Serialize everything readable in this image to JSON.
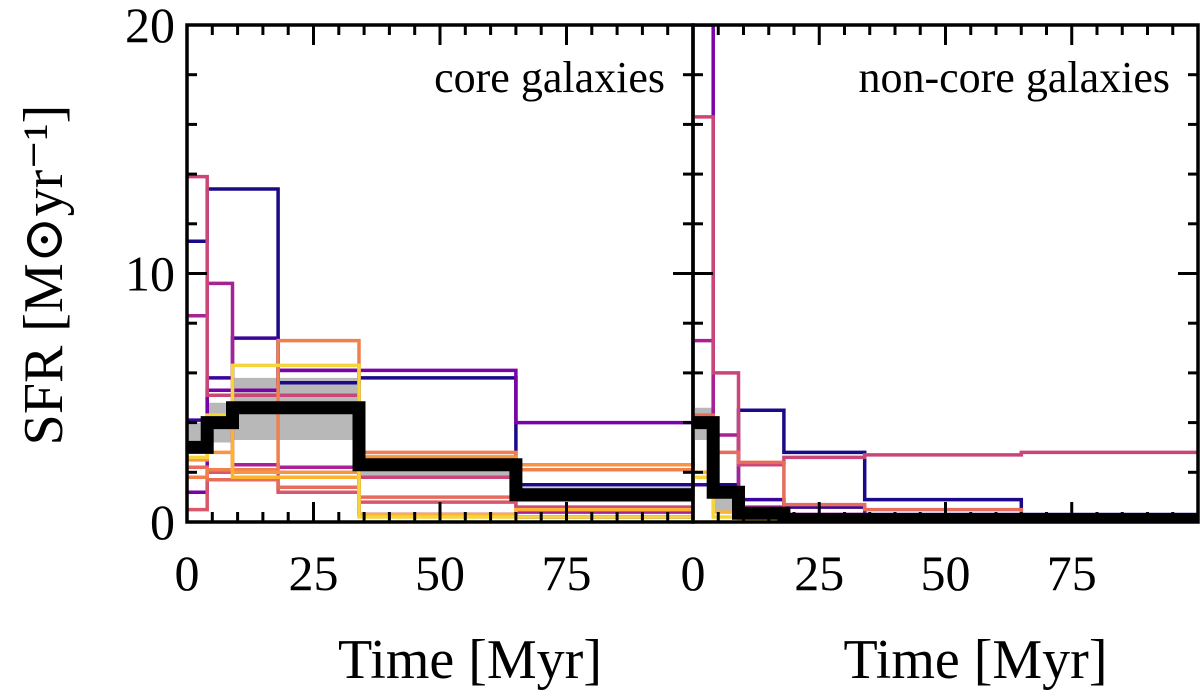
{
  "chart_data": {
    "type": "line",
    "ylabel": "SFR [M⊙yr⁻¹]",
    "ylim": [
      0,
      20
    ],
    "yticks": [
      "0",
      "10",
      "20"
    ],
    "xlim": [
      0,
      100
    ],
    "grid": false,
    "panels": [
      {
        "title": "core galaxies",
        "xlabel": "Time [Myr]",
        "xticks": [
          "0",
          "25",
          "50",
          "75"
        ],
        "band": {
          "color": "#b8b8b8",
          "edges": [
            0,
            4,
            9,
            34,
            65,
            100
          ],
          "lower": [
            2.8,
            3.2,
            3.3,
            1.8,
            0.8
          ],
          "upper": [
            4.0,
            4.8,
            5.8,
            2.7,
            1.4
          ]
        },
        "median": {
          "color": "#000000",
          "edges": [
            0,
            4,
            9,
            34,
            65,
            100
          ],
          "values": [
            3.0,
            4.0,
            4.6,
            2.3,
            1.1
          ]
        },
        "series": [
          {
            "color": "#1a0a8a",
            "edges": [
              0,
              4,
              18,
              34,
              65,
              100
            ],
            "values": [
              11.3,
              13.4,
              5.6,
              5.8,
              1.5
            ]
          },
          {
            "color": "#3b049a",
            "edges": [
              0,
              4,
              9,
              18,
              34,
              65,
              100
            ],
            "values": [
              4.1,
              5.8,
              7.4,
              6.1,
              0.3,
              0.2
            ]
          },
          {
            "color": "#7a02a8",
            "edges": [
              0,
              4,
              18,
              34,
              65,
              100
            ],
            "values": [
              1.2,
              5.3,
              6.1,
              6.1,
              4.0
            ]
          },
          {
            "color": "#a82296",
            "edges": [
              0,
              4,
              9,
              18,
              34,
              65,
              100
            ],
            "values": [
              8.3,
              9.6,
              2.3,
              2.2,
              0.3,
              0.4
            ]
          },
          {
            "color": "#cb4678",
            "edges": [
              0,
              4,
              34,
              65,
              100
            ],
            "values": [
              13.9,
              5.1,
              1.8,
              0.6
            ]
          },
          {
            "color": "#d8576b",
            "edges": [
              0,
              4,
              18,
              34,
              65,
              100
            ],
            "values": [
              0.5,
              2.0,
              1.2,
              0.8,
              0.9
            ]
          },
          {
            "color": "#e66c5c",
            "edges": [
              0,
              4,
              18,
              34,
              65,
              100
            ],
            "values": [
              2.2,
              1.7,
              1.4,
              1.0,
              1.0
            ]
          },
          {
            "color": "#f0804e",
            "edges": [
              0,
              4,
              18,
              34,
              65,
              100
            ],
            "values": [
              1.8,
              2.1,
              7.3,
              2.8,
              2.1
            ]
          },
          {
            "color": "#f89540",
            "edges": [
              0,
              4,
              9,
              34,
              65,
              100
            ],
            "values": [
              2.5,
              2.8,
              2.0,
              2.6,
              2.3
            ]
          },
          {
            "color": "#fdb32f",
            "edges": [
              0,
              4,
              9,
              34,
              65,
              100
            ],
            "values": [
              3.0,
              4.0,
              1.8,
              0.3,
              0.5
            ]
          },
          {
            "color": "#f6d53c",
            "edges": [
              0,
              4,
              9,
              34,
              65,
              100
            ],
            "values": [
              2.6,
              4.3,
              6.3,
              0.2,
              0.2
            ]
          }
        ]
      },
      {
        "title": "non-core galaxies",
        "xlabel": "Time [Myr]",
        "xticks": [
          "0",
          "25",
          "50",
          "75"
        ],
        "band": {
          "color": "#b8b8b8",
          "edges": [
            0,
            4,
            9,
            18,
            34,
            65,
            100
          ],
          "lower": [
            3.3,
            0.4,
            0.1,
            0.0,
            0.0,
            0.0
          ],
          "upper": [
            4.6,
            1.3,
            0.5,
            0.3,
            0.2,
            0.1
          ]
        },
        "median": {
          "color": "#000000",
          "edges": [
            0,
            4,
            9,
            18,
            34,
            65,
            100
          ],
          "values": [
            4.0,
            1.2,
            0.35,
            0.1,
            0.1,
            0.1
          ]
        },
        "series": [
          {
            "color": "#1a0a8a",
            "edges": [
              0,
              4,
              9,
              18,
              34,
              65,
              100
            ],
            "values": [
              4.0,
              1.5,
              4.5,
              2.8,
              0.9,
              0.3
            ]
          },
          {
            "color": "#3b049a",
            "edges": [
              0,
              4,
              9,
              18,
              34,
              65,
              100
            ],
            "values": [
              1.5,
              1.3,
              0.9,
              0.6,
              0.3,
              0.1
            ]
          },
          {
            "color": "#7a02a8",
            "edges": [
              0,
              4,
              9,
              18,
              34,
              65,
              100
            ],
            "values": [
              20.0,
              1.3,
              0.5,
              0.3,
              0.2,
              0.2
            ]
          },
          {
            "color": "#a82296",
            "edges": [
              0,
              4,
              9,
              18,
              34,
              65,
              100
            ],
            "values": [
              7.3,
              3.5,
              0.6,
              0.3,
              0.2,
              0.1
            ]
          },
          {
            "color": "#cb4678",
            "edges": [
              0,
              4,
              9,
              18,
              34,
              65,
              100
            ],
            "values": [
              16.3,
              6.0,
              2.3,
              2.6,
              2.7,
              2.8
            ]
          },
          {
            "color": "#e66c5c",
            "edges": [
              0,
              4,
              9,
              18,
              34,
              65,
              100
            ],
            "values": [
              4.3,
              2.8,
              2.4,
              0.7,
              0.5,
              0.1
            ]
          },
          {
            "color": "#fdb32f",
            "edges": [
              0,
              4,
              9,
              18,
              34,
              65,
              100
            ],
            "values": [
              2.0,
              0.4,
              0.2,
              0.1,
              0.1,
              0.05
            ]
          },
          {
            "color": "#f6d53c",
            "edges": [
              0,
              4,
              9,
              18,
              34,
              65,
              100
            ],
            "values": [
              1.8,
              0.2,
              0.1,
              0.05,
              0.05,
              0.02
            ]
          }
        ]
      }
    ]
  }
}
